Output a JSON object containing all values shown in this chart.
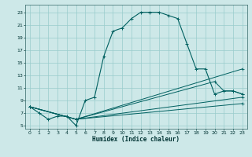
{
  "xlabel": "Humidex (Indice chaleur)",
  "bg_color": "#cde8e8",
  "grid_color": "#99cccc",
  "line_color": "#006060",
  "xlim": [
    -0.5,
    23.5
  ],
  "ylim": [
    4.5,
    24.2
  ],
  "xticks": [
    0,
    1,
    2,
    3,
    4,
    5,
    6,
    7,
    8,
    9,
    10,
    11,
    12,
    13,
    14,
    15,
    16,
    17,
    18,
    19,
    20,
    21,
    22,
    23
  ],
  "yticks": [
    5,
    7,
    9,
    11,
    13,
    15,
    17,
    19,
    21,
    23
  ],
  "lines": [
    {
      "x": [
        0,
        1,
        2,
        3,
        4,
        5,
        6,
        7,
        8,
        9,
        10,
        11,
        12,
        13,
        14,
        15,
        16,
        17,
        18,
        19,
        20,
        21,
        22,
        23
      ],
      "y": [
        8,
        7,
        6,
        6.5,
        6.5,
        5,
        9,
        9.5,
        16,
        20,
        20.5,
        22,
        23,
        23,
        23,
        22.5,
        22,
        18,
        14,
        14,
        10,
        10.5,
        10.5,
        10
      ]
    },
    {
      "x": [
        0,
        5,
        23
      ],
      "y": [
        8,
        6,
        14
      ]
    },
    {
      "x": [
        0,
        5,
        20,
        21,
        22,
        23
      ],
      "y": [
        8,
        6,
        12,
        10.5,
        10.5,
        10
      ]
    },
    {
      "x": [
        0,
        5,
        23
      ],
      "y": [
        8,
        6,
        9.5
      ]
    },
    {
      "x": [
        0,
        5,
        23
      ],
      "y": [
        8,
        6,
        8.5
      ]
    }
  ]
}
